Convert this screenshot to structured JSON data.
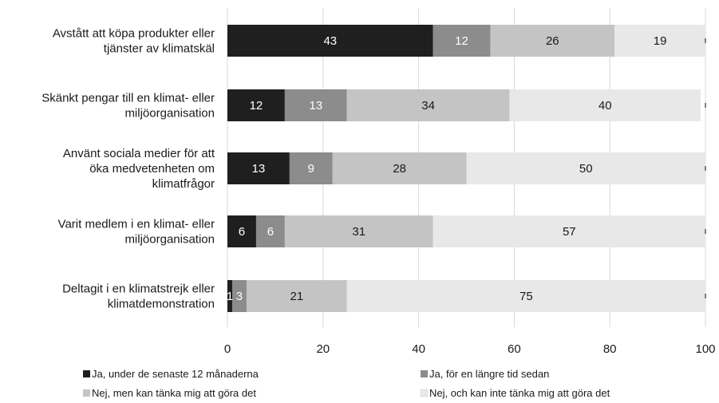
{
  "chart_data": {
    "type": "bar",
    "orientation": "horizontal",
    "stacked": true,
    "categories": [
      "Avstått att köpa produkter eller tjänster av klimatskäl",
      "Skänkt pengar till en klimat- eller miljöorganisation",
      "Använt sociala medier för att öka medvetenheten om klimatfrågor",
      "Varit medlem i en klimat- eller miljöorganisation",
      "Deltagit i en klimatstrejk eller klimatdemonstration"
    ],
    "category_lines": [
      [
        "Avstått att köpa produkter eller",
        "tjänster av klimatskäl"
      ],
      [
        "Skänkt pengar till en klimat- eller",
        "miljöorganisation"
      ],
      [
        "Använt sociala medier för att",
        "öka medvetenheten om",
        "klimatfrågor"
      ],
      [
        "Varit medlem i en klimat- eller",
        "miljöorganisation"
      ],
      [
        "Deltagit i en klimatstrejk eller",
        "klimatdemonstration"
      ]
    ],
    "series": [
      {
        "name": "Ja, under de senaste 12 månaderna",
        "color": "#1f1f1f",
        "label_color": "#ffffff",
        "values": [
          43,
          12,
          13,
          6,
          1
        ]
      },
      {
        "name": "Ja, för en längre tid sedan",
        "color": "#8c8c8c",
        "label_color": "#ffffff",
        "values": [
          12,
          13,
          9,
          6,
          3
        ]
      },
      {
        "name": "Nej, men kan tänka mig att göra det",
        "color": "#c4c4c4",
        "label_color": "#1a1a1a",
        "values": [
          26,
          34,
          28,
          31,
          21
        ]
      },
      {
        "name": "Nej, och kan inte tänka mig att göra det",
        "color": "#e8e8e8",
        "label_color": "#1a1a1a",
        "values": [
          19,
          40,
          50,
          57,
          75
        ]
      }
    ],
    "xlim": [
      0,
      100
    ],
    "xticks": [
      0,
      20,
      40,
      60,
      80,
      100
    ],
    "grid": true,
    "legend_position": "bottom",
    "title": "",
    "xlabel": "",
    "ylabel": ""
  }
}
